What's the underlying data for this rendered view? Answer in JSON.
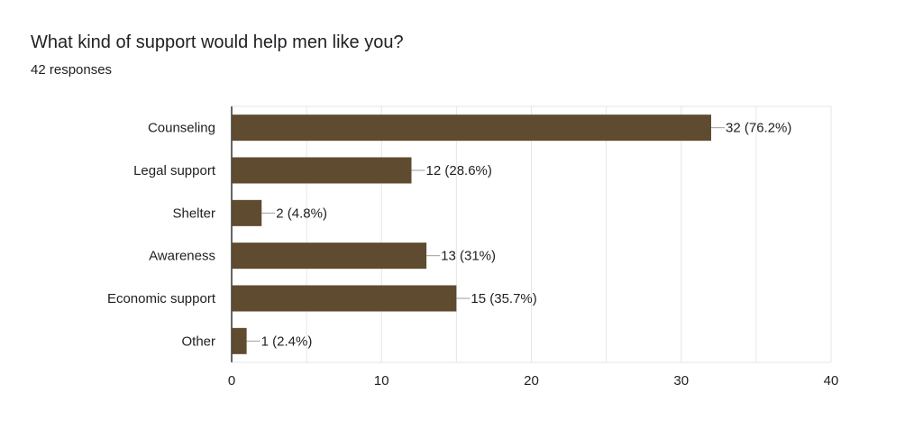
{
  "question": "What kind of support would help men like you?",
  "responses": "42 responses",
  "colors": {
    "bar": "#5f4b2f",
    "grid": "#e6e6e6",
    "text": "#202124",
    "leader": "#9e9e9e",
    "axis": "#333333"
  },
  "chart_data": {
    "type": "bar",
    "orientation": "horizontal",
    "categories": [
      "Counseling",
      "Legal support",
      "Shelter",
      "Awareness",
      "Economic support",
      "Other"
    ],
    "values": [
      32,
      12,
      2,
      13,
      15,
      1
    ],
    "data_labels": [
      "32 (76.2%)",
      "12 (28.6%)",
      "2 (4.8%)",
      "13 (31%)",
      "15 (35.7%)",
      "1 (2.4%)"
    ],
    "xlim": [
      0,
      40
    ],
    "xticks": [
      0,
      10,
      20,
      30,
      40
    ],
    "minor_grid_step": 5,
    "grid": true,
    "title": "What kind of support would help men like you?",
    "subtitle": "42 responses"
  }
}
